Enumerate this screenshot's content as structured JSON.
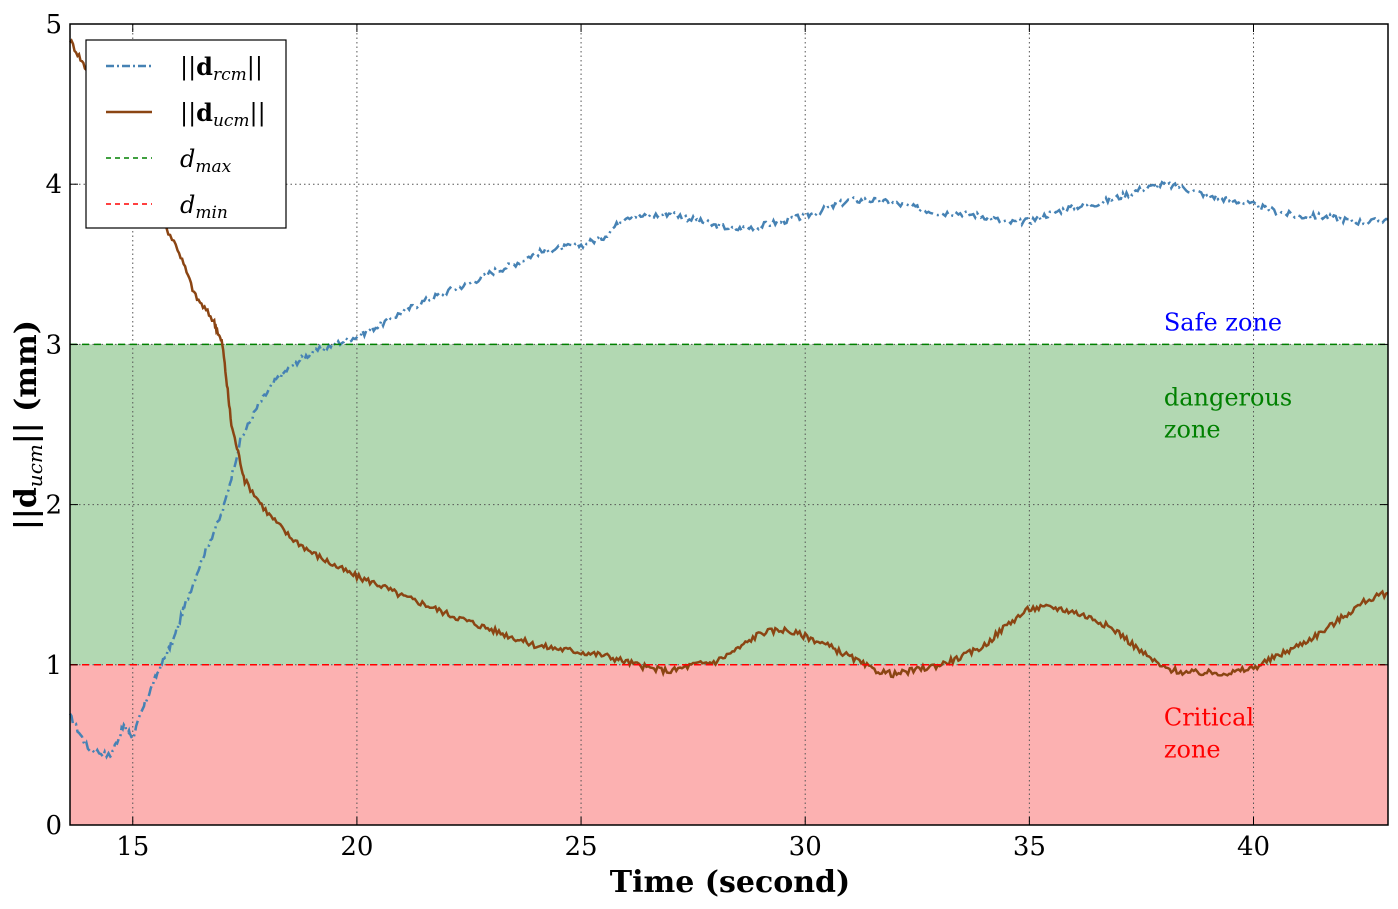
{
  "chart_data": {
    "type": "line",
    "xlabel": "Time (second)",
    "ylabel": "||d_ucm|| (mm)",
    "xlim": [
      13.6,
      43
    ],
    "ylim": [
      0,
      5
    ],
    "xticks": [
      15,
      20,
      25,
      30,
      35,
      40
    ],
    "yticks": [
      0,
      1,
      2,
      3,
      4,
      5
    ],
    "grid": true,
    "legend_position": "top-left",
    "zones": [
      {
        "label": "Safe zone",
        "color": "#0000ff",
        "from": 3,
        "to": 5
      },
      {
        "label": "dangerous zone",
        "label_lines": [
          "dangerous",
          "zone"
        ],
        "color": "#008000",
        "fill": "#b2d8b2",
        "from": 1,
        "to": 3
      },
      {
        "label": "Critical zone",
        "label_lines": [
          "Critical",
          "zone"
        ],
        "color": "#ff0000",
        "fill": "#fcb1b1",
        "from": 0,
        "to": 1
      }
    ],
    "series": [
      {
        "name": "||d_rcm||",
        "color": "#4682b4",
        "style": "dashdot",
        "x": [
          13.6,
          14.0,
          14.5,
          14.8,
          15.0,
          15.3,
          15.6,
          15.9,
          16.2,
          16.6,
          17.0,
          17.4,
          17.8,
          18.2,
          18.6,
          19.0,
          19.5,
          20.0,
          20.5,
          21.0,
          21.5,
          22.0,
          22.5,
          23.0,
          23.5,
          24.0,
          24.5,
          25.0,
          25.5,
          26.0,
          26.5,
          27.0,
          27.5,
          28.0,
          28.5,
          29.0,
          29.5,
          30.0,
          30.5,
          31.0,
          31.5,
          32.0,
          32.5,
          33.0,
          33.5,
          34.0,
          34.5,
          35.0,
          35.5,
          36.0,
          36.5,
          37.0,
          37.5,
          38.0,
          38.5,
          39.0,
          39.5,
          40.0,
          40.5,
          41.0,
          41.5,
          42.0,
          42.5,
          43.0
        ],
        "values": [
          0.68,
          0.48,
          0.43,
          0.62,
          0.55,
          0.78,
          0.98,
          1.15,
          1.4,
          1.7,
          1.95,
          2.4,
          2.62,
          2.78,
          2.88,
          2.95,
          3.0,
          3.05,
          3.12,
          3.2,
          3.27,
          3.33,
          3.38,
          3.45,
          3.5,
          3.57,
          3.6,
          3.62,
          3.67,
          3.8,
          3.8,
          3.82,
          3.78,
          3.74,
          3.72,
          3.74,
          3.77,
          3.8,
          3.85,
          3.9,
          3.9,
          3.88,
          3.85,
          3.82,
          3.82,
          3.8,
          3.76,
          3.77,
          3.82,
          3.86,
          3.88,
          3.92,
          3.97,
          4.0,
          3.97,
          3.93,
          3.9,
          3.87,
          3.83,
          3.8,
          3.8,
          3.78,
          3.76,
          3.78
        ]
      },
      {
        "name": "||d_ucm||",
        "color": "#8b4513",
        "style": "solid",
        "x": [
          13.6,
          14.0,
          14.5,
          15.0,
          15.5,
          16.0,
          16.4,
          16.8,
          17.0,
          17.2,
          17.5,
          18.0,
          18.5,
          19.0,
          19.5,
          20.0,
          20.5,
          21.0,
          21.5,
          22.0,
          22.5,
          23.0,
          23.5,
          24.0,
          24.5,
          25.0,
          25.5,
          26.0,
          26.5,
          27.0,
          27.5,
          28.0,
          28.5,
          29.0,
          29.5,
          30.0,
          30.5,
          31.0,
          31.5,
          32.0,
          32.5,
          33.0,
          33.5,
          34.0,
          34.5,
          35.0,
          35.5,
          36.0,
          36.5,
          37.0,
          37.5,
          38.0,
          38.5,
          39.0,
          39.5,
          40.0,
          40.5,
          41.0,
          41.5,
          42.0,
          42.5,
          43.0
        ],
        "values": [
          4.9,
          4.7,
          4.4,
          4.15,
          3.85,
          3.6,
          3.3,
          3.15,
          3.0,
          2.5,
          2.15,
          1.95,
          1.8,
          1.7,
          1.62,
          1.55,
          1.5,
          1.43,
          1.38,
          1.32,
          1.27,
          1.22,
          1.17,
          1.12,
          1.1,
          1.08,
          1.06,
          1.02,
          0.98,
          0.96,
          1.0,
          1.02,
          1.1,
          1.2,
          1.22,
          1.18,
          1.12,
          1.05,
          0.97,
          0.94,
          0.97,
          1.0,
          1.05,
          1.12,
          1.25,
          1.35,
          1.36,
          1.33,
          1.28,
          1.2,
          1.08,
          0.98,
          0.95,
          0.95,
          0.95,
          0.98,
          1.05,
          1.12,
          1.2,
          1.3,
          1.4,
          1.45
        ]
      },
      {
        "name": "d_max",
        "color": "#008000",
        "style": "dashed",
        "x": [
          13.6,
          43
        ],
        "values": [
          3,
          3
        ]
      },
      {
        "name": "d_min",
        "color": "#ff0000",
        "style": "dashed",
        "x": [
          13.6,
          43
        ],
        "values": [
          1,
          1
        ]
      }
    ],
    "legend": [
      {
        "text": "||d_rcm||",
        "series": 0
      },
      {
        "text": "||d_ucm||",
        "series": 1
      },
      {
        "text": "d_max",
        "series": 2
      },
      {
        "text": "d_min",
        "series": 3
      }
    ]
  }
}
